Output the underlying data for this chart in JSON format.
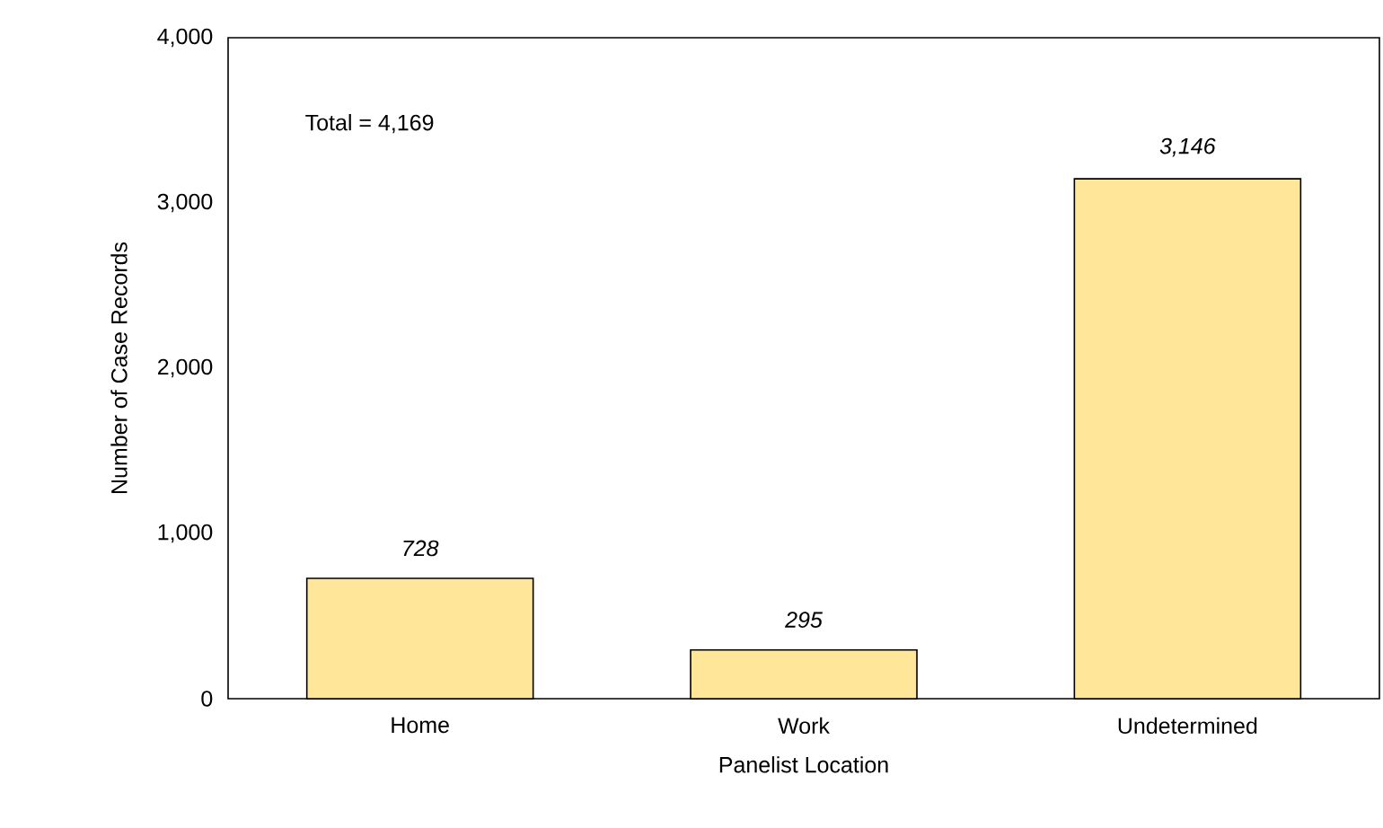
{
  "chart_data": {
    "type": "bar",
    "xlabel": "Panelist Location",
    "ylabel": "Number of Case Records",
    "categories": [
      "Home",
      "Work",
      "Undetermined"
    ],
    "values": [
      728,
      295,
      3146
    ],
    "value_labels": [
      "728",
      "295",
      "3,146"
    ],
    "color": "#ffe699",
    "ylim": [
      0,
      4000
    ],
    "yticks": [
      0,
      {
        "value": 1000,
        "label": "1,000"
      },
      {
        "value": 2000,
        "label": "2,000"
      },
      {
        "value": 3000,
        "label": "3,000"
      },
      {
        "value": 4000,
        "label": "4,000"
      }
    ],
    "grid": false,
    "annotations": [
      "Total = 4,169"
    ]
  }
}
